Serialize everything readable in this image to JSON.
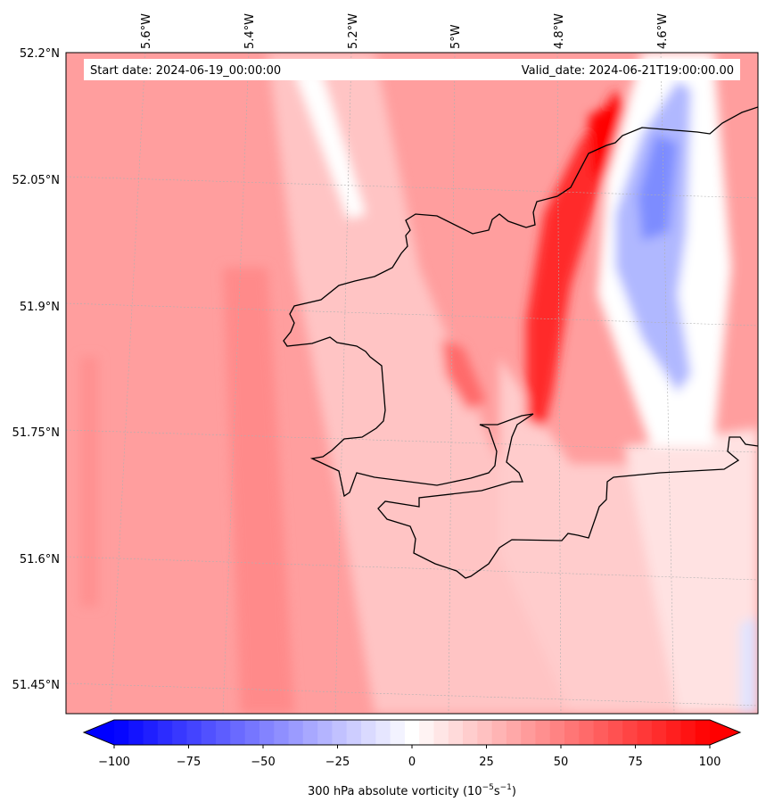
{
  "map": {
    "start_label": "Start date: 2024-06-19_00:00:00",
    "valid_label": "Valid_date: 2024-06-21T19:00:00.00",
    "lon_labels": [
      "5.6°W",
      "5.4°W",
      "5.2°W",
      "5°W",
      "4.8°W",
      "4.6°W"
    ],
    "lat_labels": [
      "52.2°N",
      "52.05°N",
      "51.9°N",
      "51.75°N",
      "51.6°N",
      "51.45°N"
    ],
    "field": "300 hPa absolute vorticity",
    "coastline_color": "#000000",
    "gridline_color": "#b0b0b0"
  },
  "colorbar": {
    "title": "300 hPa absolute vorticity (10",
    "title_exp1": "−5",
    "title_mid": "s",
    "title_exp2": "−1",
    "title_end": ")",
    "tick_labels": [
      "−100",
      "−75",
      "−50",
      "−25",
      "0",
      "25",
      "50",
      "75",
      "100"
    ],
    "min": -100,
    "max": 100,
    "levels": 41,
    "color_low": "#0000ff",
    "color_mid": "#ffffff",
    "color_high": "#ff0000"
  }
}
